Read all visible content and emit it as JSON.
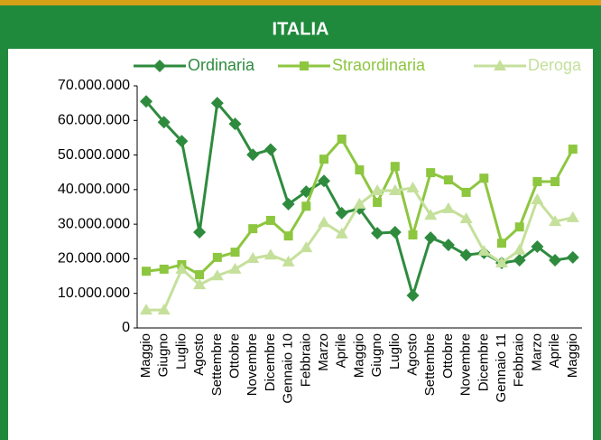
{
  "chart_data": {
    "type": "line",
    "title": "ITALIA",
    "categories": [
      "Maggio",
      "Giugno",
      "Luglio",
      "Agosto",
      "Settembre",
      "Ottobre",
      "Novembre",
      "Dicembre",
      "Gennaio 10",
      "Febbraio",
      "Marzo",
      "Aprile",
      "Maggio",
      "Giugno",
      "Luglio",
      "Agosto",
      "Settembre",
      "Ottobre",
      "Novembre",
      "Dicembre",
      "Gennaio 11",
      "Febbraio",
      "Marzo",
      "Aprile",
      "Maggio"
    ],
    "series": [
      {
        "name": "Ordinaria",
        "color": "#2e8b3e",
        "marker": "diamond",
        "values": [
          65500000,
          59500000,
          54000000,
          27700000,
          65000000,
          59000000,
          50100000,
          51600000,
          35800000,
          39400000,
          42500000,
          33200000,
          34500000,
          27400000,
          27700000,
          9400000,
          26100000,
          24000000,
          21100000,
          21700000,
          18800000,
          19600000,
          23500000,
          19600000,
          20400000
        ]
      },
      {
        "name": "Straordinaria",
        "color": "#8dc63f",
        "marker": "square",
        "values": [
          16400000,
          17000000,
          18300000,
          15400000,
          20400000,
          21900000,
          28700000,
          31100000,
          26600000,
          35200000,
          48800000,
          54600000,
          45700000,
          36300000,
          46700000,
          26900000,
          44900000,
          42800000,
          39200000,
          43300000,
          24500000,
          29200000,
          42300000,
          42300000,
          51700000
        ]
      },
      {
        "name": "Deroga",
        "color": "#c5e09b",
        "marker": "triangle",
        "values": [
          5200000,
          5200000,
          17000000,
          12500000,
          15100000,
          17000000,
          20100000,
          21100000,
          19100000,
          23200000,
          30500000,
          27200000,
          35800000,
          39700000,
          39700000,
          40500000,
          32600000,
          34500000,
          31600000,
          22200000,
          18800000,
          22500000,
          37100000,
          30800000,
          31900000
        ]
      }
    ],
    "ylim": [
      0,
      70000000
    ],
    "yticks": [
      0,
      {
        "value": 10000000,
        "label": "10.000.000"
      },
      {
        "value": 20000000,
        "label": "20.000.000"
      },
      {
        "value": 30000000,
        "label": "30.000.000"
      },
      {
        "value": 40000000,
        "label": "40.000.000"
      },
      {
        "value": 50000000,
        "label": "50.000.000"
      },
      {
        "value": 60000000,
        "label": "60.000.000"
      },
      {
        "value": 70000000,
        "label": "70.000.000"
      }
    ],
    "grid": false,
    "legend": "top"
  }
}
